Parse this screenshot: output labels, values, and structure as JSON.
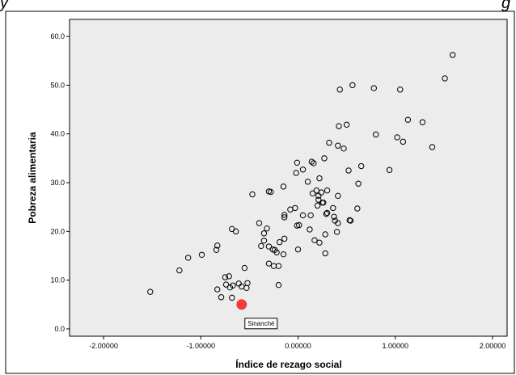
{
  "top_fragment": {
    "left": "y",
    "right": "g"
  },
  "chart_data": {
    "type": "scatter",
    "title": "",
    "xlabel": "Índice de rezago social",
    "ylabel": "Pobreza alimentaria",
    "xlim": [
      -2.35,
      2.15
    ],
    "ylim": [
      -1.5,
      63.5
    ],
    "x_ticks": [
      -2.0,
      -1.0,
      0.0,
      1.0,
      2.0
    ],
    "x_tick_labels": [
      "-2.00000",
      "-1.00000",
      "0.00000",
      "1.00000",
      "2.00000"
    ],
    "y_ticks": [
      0,
      10,
      20,
      30,
      40,
      50,
      60
    ],
    "y_tick_labels": [
      "0.0",
      "10.0",
      "20.0",
      "30.0",
      "40.0",
      "50.0",
      "60.0"
    ],
    "grid": false,
    "plot_background": "#ececec",
    "marker_color": "#000000",
    "highlight_color": "#ef3b3b",
    "highlight": {
      "x": -0.58,
      "y": 5.0,
      "label": "Sinanché"
    },
    "points": [
      [
        -1.52,
        7.6
      ],
      [
        -1.22,
        12.0
      ],
      [
        -1.13,
        14.6
      ],
      [
        -0.99,
        15.2
      ],
      [
        -0.84,
        16.2
      ],
      [
        -0.83,
        17.1
      ],
      [
        -0.83,
        8.1
      ],
      [
        -0.79,
        6.5
      ],
      [
        -0.75,
        10.6
      ],
      [
        -0.74,
        9.1
      ],
      [
        -0.71,
        10.8
      ],
      [
        -0.7,
        8.5
      ],
      [
        -0.68,
        6.4
      ],
      [
        -0.67,
        8.9
      ],
      [
        -0.68,
        20.5
      ],
      [
        -0.64,
        20.0
      ],
      [
        -0.61,
        9.3
      ],
      [
        -0.58,
        8.7
      ],
      [
        -0.55,
        12.5
      ],
      [
        -0.53,
        8.4
      ],
      [
        -0.52,
        9.4
      ],
      [
        -0.47,
        27.6
      ],
      [
        -0.4,
        21.7
      ],
      [
        -0.38,
        17.0
      ],
      [
        -0.35,
        19.6
      ],
      [
        -0.35,
        18.1
      ],
      [
        -0.32,
        20.6
      ],
      [
        -0.3,
        28.2
      ],
      [
        -0.3,
        16.9
      ],
      [
        -0.28,
        28.1
      ],
      [
        -0.3,
        13.4
      ],
      [
        -0.26,
        16.3
      ],
      [
        -0.25,
        12.9
      ],
      [
        -0.24,
        16.2
      ],
      [
        -0.22,
        15.7
      ],
      [
        -0.19,
        17.8
      ],
      [
        -0.2,
        12.9
      ],
      [
        -0.2,
        9.0
      ],
      [
        -0.15,
        15.3
      ],
      [
        -0.14,
        23.4
      ],
      [
        -0.14,
        22.9
      ],
      [
        -0.15,
        29.2
      ],
      [
        -0.14,
        18.5
      ],
      [
        -0.08,
        24.5
      ],
      [
        -0.03,
        24.8
      ],
      [
        -0.02,
        32.0
      ],
      [
        -0.01,
        34.1
      ],
      [
        -0.01,
        21.2
      ],
      [
        0.01,
        21.3
      ],
      [
        0.0,
        16.3
      ],
      [
        0.05,
        32.7
      ],
      [
        0.05,
        23.3
      ],
      [
        0.1,
        30.2
      ],
      [
        0.12,
        20.4
      ],
      [
        0.13,
        23.3
      ],
      [
        0.14,
        34.3
      ],
      [
        0.15,
        27.8
      ],
      [
        0.16,
        34.0
      ],
      [
        0.17,
        18.2
      ],
      [
        0.19,
        28.4
      ],
      [
        0.2,
        25.3
      ],
      [
        0.21,
        27.3
      ],
      [
        0.21,
        26.5
      ],
      [
        0.22,
        17.7
      ],
      [
        0.22,
        30.9
      ],
      [
        0.24,
        28.0
      ],
      [
        0.25,
        25.9
      ],
      [
        0.26,
        25.9
      ],
      [
        0.27,
        35.0
      ],
      [
        0.28,
        19.4
      ],
      [
        0.28,
        15.5
      ],
      [
        0.29,
        23.6
      ],
      [
        0.3,
        23.8
      ],
      [
        0.3,
        28.4
      ],
      [
        0.32,
        38.2
      ],
      [
        0.36,
        24.8
      ],
      [
        0.37,
        23.0
      ],
      [
        0.38,
        22.2
      ],
      [
        0.4,
        19.9
      ],
      [
        0.41,
        21.7
      ],
      [
        0.41,
        27.3
      ],
      [
        0.41,
        37.6
      ],
      [
        0.42,
        41.6
      ],
      [
        0.43,
        49.1
      ],
      [
        0.47,
        37.0
      ],
      [
        0.5,
        41.9
      ],
      [
        0.52,
        32.5
      ],
      [
        0.53,
        22.3
      ],
      [
        0.54,
        22.2
      ],
      [
        0.56,
        50.0
      ],
      [
        0.61,
        24.7
      ],
      [
        0.62,
        29.8
      ],
      [
        0.65,
        33.4
      ],
      [
        0.78,
        49.4
      ],
      [
        0.8,
        39.9
      ],
      [
        0.94,
        32.6
      ],
      [
        1.02,
        39.3
      ],
      [
        1.05,
        49.1
      ],
      [
        1.08,
        38.4
      ],
      [
        1.13,
        42.9
      ],
      [
        1.28,
        42.4
      ],
      [
        1.38,
        37.3
      ],
      [
        1.51,
        51.4
      ],
      [
        1.59,
        56.2
      ]
    ]
  }
}
